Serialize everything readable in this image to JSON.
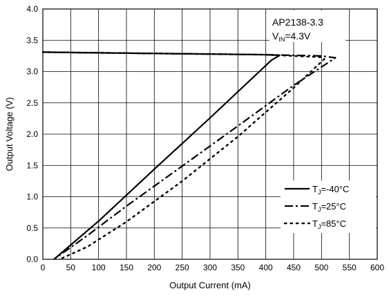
{
  "chart_data": {
    "type": "line",
    "xlabel": "Output Current (mA)",
    "ylabel": "Output Voltage (V)",
    "xlim": [
      0,
      600
    ],
    "ylim": [
      0,
      4.0
    ],
    "xticks": [
      "0",
      "50",
      "100",
      "150",
      "200",
      "250",
      "300",
      "350",
      "400",
      "450",
      "500",
      "550",
      "600"
    ],
    "yticks": [
      "0.0",
      "0.5",
      "1.0",
      "1.5",
      "2.0",
      "2.5",
      "3.0",
      "3.5",
      "4.0"
    ],
    "grid": true,
    "annotation": {
      "line1": "AP2138-3.3",
      "line2_main": "V",
      "line2_sub": "IN",
      "line2_rest": "=4.3V"
    },
    "legend_position": "bottom-right",
    "series": [
      {
        "name": "T_J=-40°C",
        "legend_main": "T",
        "legend_sub": "J",
        "legend_rest": "=-40°C",
        "style": "solid",
        "points": [
          [
            0,
            3.31
          ],
          [
            100,
            3.3
          ],
          [
            200,
            3.29
          ],
          [
            300,
            3.28
          ],
          [
            400,
            3.27
          ],
          [
            425,
            3.26
          ],
          [
            410,
            3.18
          ],
          [
            300,
            2.26
          ],
          [
            200,
            1.44
          ],
          [
            100,
            0.61
          ],
          [
            20,
            0.0
          ]
        ]
      },
      {
        "name": "T_J=25°C",
        "legend_main": "T",
        "legend_sub": "J",
        "legend_rest": "=25°C",
        "style": "dashdot",
        "points": [
          [
            0,
            3.31
          ],
          [
            100,
            3.3
          ],
          [
            200,
            3.29
          ],
          [
            300,
            3.28
          ],
          [
            400,
            3.27
          ],
          [
            450,
            3.26
          ],
          [
            500,
            3.25
          ],
          [
            525,
            3.22
          ],
          [
            450,
            2.78
          ],
          [
            350,
            2.13
          ],
          [
            250,
            1.49
          ],
          [
            150,
            0.85
          ],
          [
            80,
            0.38
          ],
          [
            20,
            0.0
          ]
        ]
      },
      {
        "name": "T_J=85°C",
        "legend_main": "T",
        "legend_sub": "J",
        "legend_rest": "=85°C",
        "style": "dotted",
        "points": [
          [
            0,
            3.31
          ],
          [
            100,
            3.3
          ],
          [
            200,
            3.29
          ],
          [
            300,
            3.28
          ],
          [
            400,
            3.27
          ],
          [
            450,
            3.25
          ],
          [
            500,
            3.23
          ],
          [
            505,
            3.2
          ],
          [
            450,
            2.74
          ],
          [
            350,
            1.96
          ],
          [
            250,
            1.25
          ],
          [
            150,
            0.6
          ],
          [
            80,
            0.2
          ],
          [
            30,
            0.0
          ]
        ]
      }
    ]
  }
}
